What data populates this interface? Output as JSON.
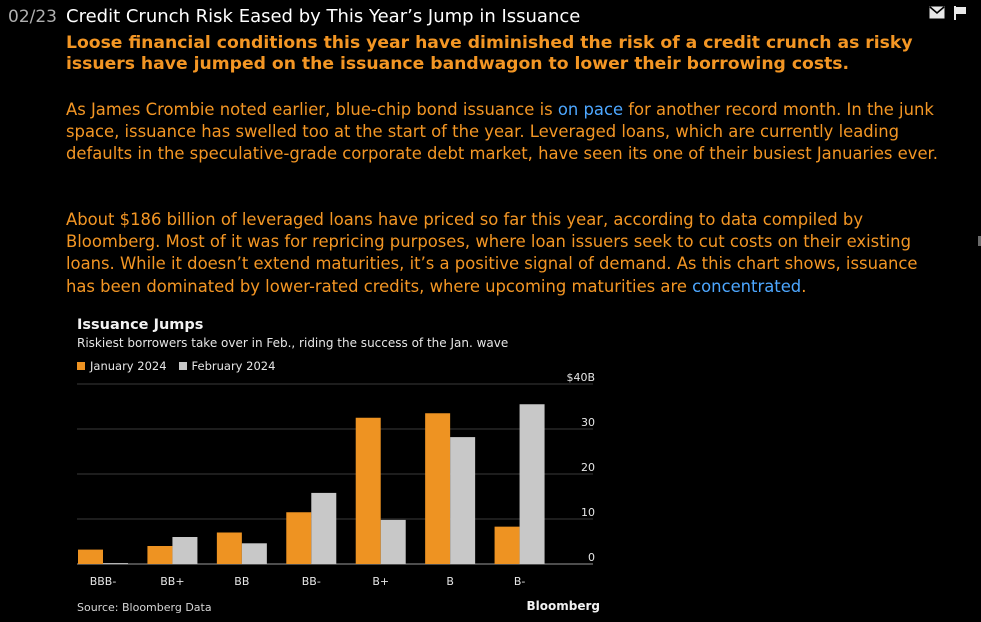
{
  "header": {
    "date": "02/23",
    "title": "Credit Crunch Risk Eased by This Year’s Jump in Issuance",
    "icons": [
      "mail-icon",
      "flag-icon"
    ]
  },
  "dek": "Loose financial conditions this year have diminished the risk of a credit crunch as risky issuers have jumped on the issuance bandwagon to lower their borrowing costs.",
  "paragraph1": {
    "before": "As James Crombie noted earlier, blue-chip bond issuance is ",
    "link": "on pace",
    "after": " for another record month. In the junk space, issuance has swelled too at the start of the year. Leveraged loans, which are currently leading defaults in the speculative-grade corporate debt market, have seen its one of their busiest Januaries ever."
  },
  "paragraph2": {
    "before": "About $186 billion of leveraged loans have priced so far this year, according to data compiled by Bloomberg. Most of it was for repricing purposes, where loan issuers seek to cut costs on their existing loans. While it doesn’t extend maturities, it’s a positive signal of demand. As this chart shows, issuance has been dominated by lower-rated credits, where upcoming maturities are ",
    "link": "concentrated",
    "after": "."
  },
  "colors": {
    "accent": "#f39624",
    "link": "#4da7ff",
    "series1": "#ee9322",
    "series2": "#c8c8c8"
  },
  "chart_data": {
    "type": "bar",
    "title": "Issuance Jumps",
    "subtitle": "Riskiest borrowers take over in Feb., riding the success of the Jan. wave",
    "categories": [
      "BBB-",
      "BB+",
      "BB",
      "BB-",
      "B+",
      "B",
      "B-"
    ],
    "series": [
      {
        "name": "January 2024",
        "values": [
          3.2,
          4,
          7,
          11.5,
          32.5,
          33.5,
          8.3
        ],
        "color": "#ee9322"
      },
      {
        "name": "February 2024",
        "values": [
          0.2,
          6,
          4.6,
          15.8,
          9.8,
          28.2,
          35.5
        ],
        "color": "#c8c8c8"
      }
    ],
    "yticks": [
      0,
      10,
      20,
      30,
      40
    ],
    "ytick_labels": [
      "0",
      "10",
      "20",
      "30",
      "$40B"
    ],
    "ylim": [
      0,
      40
    ],
    "grid": true,
    "legend_position": "top-left",
    "source": "Source: Bloomberg Data",
    "brand": "Bloomberg"
  }
}
